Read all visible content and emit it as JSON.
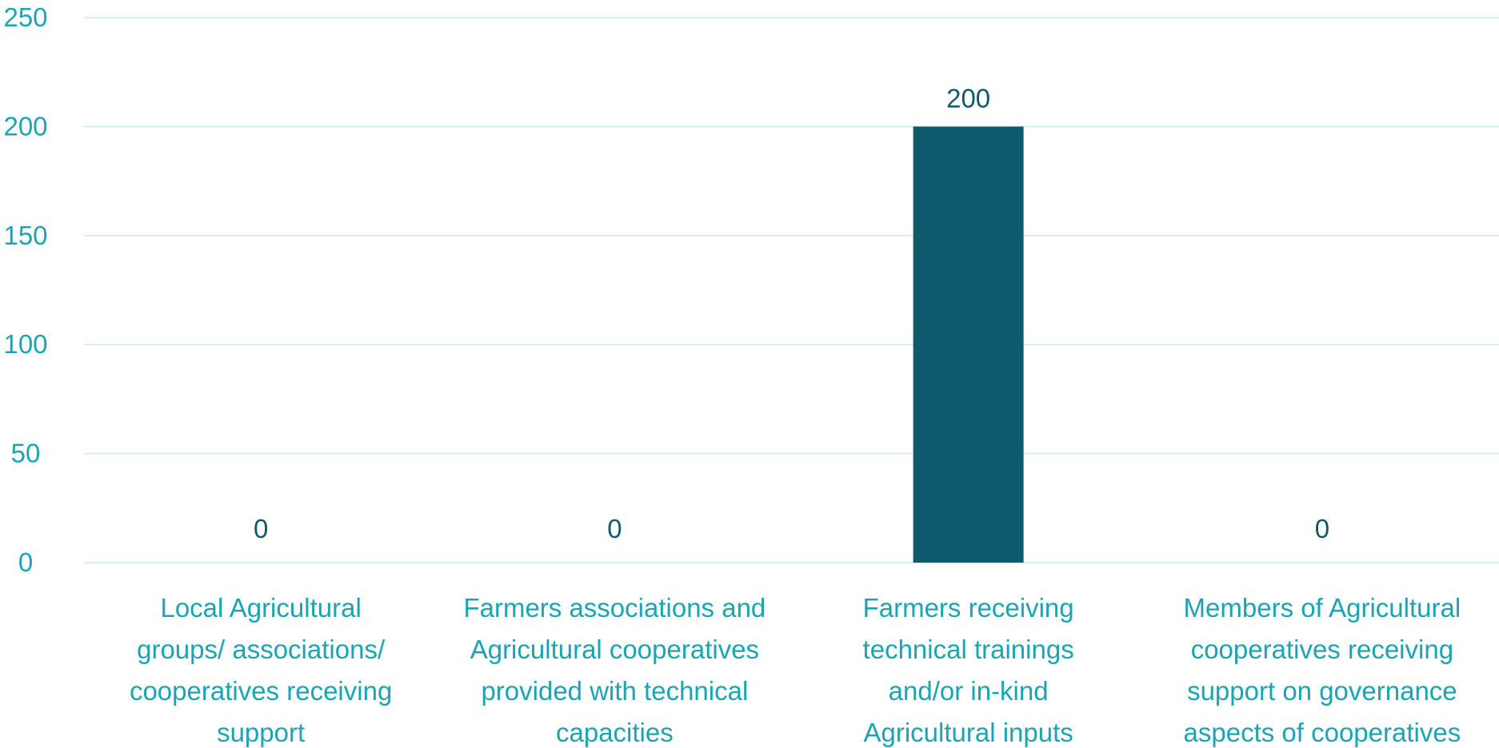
{
  "chart_data": {
    "type": "bar",
    "categories": [
      [
        "Local Agricultural",
        "groups/ associations/",
        "cooperatives receiving",
        "support"
      ],
      [
        "Farmers associations and",
        "Agricultural cooperatives",
        "provided with technical",
        "capacities"
      ],
      [
        "Farmers receiving",
        "technical trainings",
        "and/or in-kind",
        "Agricultural inputs"
      ],
      [
        "Members of Agricultural",
        "cooperatives receiving",
        "support on governance",
        "aspects of cooperatives"
      ]
    ],
    "values": [
      0,
      0,
      200,
      0
    ],
    "data_labels": [
      "0",
      "0",
      "200",
      "0"
    ],
    "y_ticks": [
      "0",
      "50",
      "100",
      "150",
      "200",
      "250"
    ],
    "ylim": [
      0,
      250
    ],
    "grid": true,
    "legend": "none",
    "colors": {
      "bar": "#0e5a6d",
      "grid": "#c8ebf3",
      "axis_text": "#1aa5b5",
      "category_text": "#1aa5b5",
      "data_label": "#0e5a6d"
    }
  }
}
